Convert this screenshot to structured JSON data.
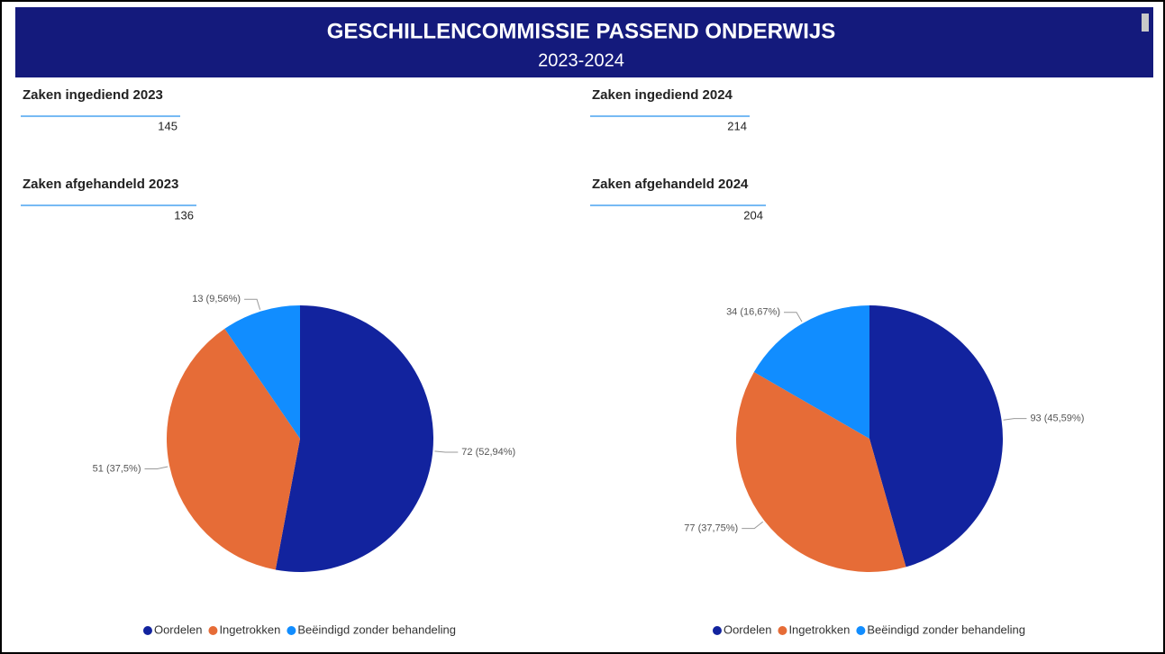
{
  "header": {
    "title": "GESCHILLENCOMMISSIE PASSEND ONDERWIJS",
    "subtitle": "2023-2024"
  },
  "cards": [
    {
      "title": "Zaken ingediend 2023",
      "value": "145"
    },
    {
      "title": "Zaken afgehandeld 2023",
      "value": "136"
    },
    {
      "title": "Zaken ingediend 2024",
      "value": "214"
    },
    {
      "title": "Zaken afgehandeld 2024",
      "value": "204"
    }
  ],
  "chart_data": [
    {
      "type": "pie",
      "categories": [
        "Oordelen",
        "Ingetrokken",
        "Beëindigd zonder behandeling"
      ],
      "values": [
        72,
        51,
        13
      ],
      "value_labels": [
        "72 (52,94%)",
        "51 (37,5%)",
        "13 (9,56%)"
      ],
      "colors": [
        "#12239e",
        "#e66c37",
        "#118dff"
      ]
    },
    {
      "type": "pie",
      "categories": [
        "Oordelen",
        "Ingetrokken",
        "Beëindigd zonder behandeling"
      ],
      "values": [
        93,
        77,
        34
      ],
      "value_labels": [
        "93 (45,59%)",
        "77 (37,75%)",
        "34 (16,67%)"
      ],
      "colors": [
        "#12239e",
        "#e66c37",
        "#118dff"
      ]
    }
  ]
}
